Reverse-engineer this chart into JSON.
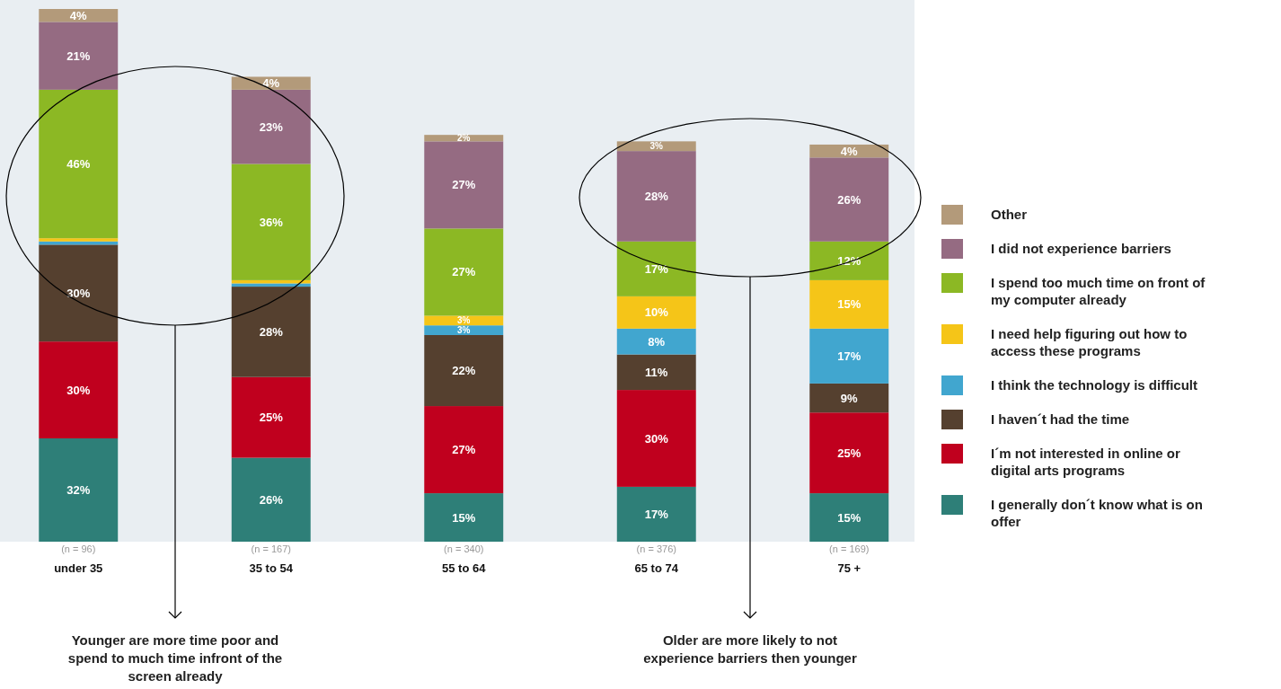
{
  "chart_data": {
    "type": "bar",
    "stacked": true,
    "legend": "right",
    "categories": [
      "under 35",
      "35 to 54",
      "55 to 64",
      "65 to 74",
      "75 +"
    ],
    "series": [
      {
        "name": "I generally don´t know what is on offer",
        "color": "#2e7f78",
        "values": [
          32,
          26,
          15,
          17,
          15
        ],
        "value_labels": [
          "32%",
          "26%",
          "15%",
          "17%",
          "15%"
        ]
      },
      {
        "name": "I´m not interested in online or digital arts programs",
        "color": "#c0001e",
        "values": [
          30,
          25,
          27,
          30,
          25
        ],
        "value_labels": [
          "30%",
          "25%",
          "27%",
          "30%",
          "25%"
        ]
      },
      {
        "name": "I haven´t had the time",
        "color": "#55402f",
        "values": [
          30,
          28,
          22,
          11,
          9
        ],
        "value_labels": [
          "30%",
          "28%",
          "22%",
          "11%",
          "9%"
        ]
      },
      {
        "name": "I think the technology is difficult",
        "color": "#41a6cf",
        "values": [
          1,
          1,
          3,
          8,
          17
        ],
        "value_labels": [
          null,
          null,
          "3%",
          "8%",
          "17%"
        ]
      },
      {
        "name": "I need help figuring out how to access these programs",
        "color": "#f5c518",
        "values": [
          1,
          1,
          3,
          10,
          15
        ],
        "value_labels": [
          null,
          null,
          "3%",
          "10%",
          "15%"
        ]
      },
      {
        "name": "I spend too much time on front of my computer already",
        "color": "#8cb824",
        "values": [
          46,
          36,
          27,
          17,
          12
        ],
        "value_labels": [
          "46%",
          "36%",
          "27%",
          "17%",
          "12%"
        ]
      },
      {
        "name": "I did not experience barriers",
        "color": "#956b82",
        "values": [
          21,
          23,
          27,
          28,
          26
        ],
        "value_labels": [
          "21%",
          "23%",
          "27%",
          "28%",
          "26%"
        ]
      },
      {
        "name": "Other",
        "color": "#b39a7a",
        "values": [
          4,
          4,
          2,
          3,
          4
        ],
        "value_labels": [
          "4%",
          "4%",
          "2%",
          "3%",
          "4%"
        ]
      }
    ],
    "annotations": [
      "(n = 96)",
      "(n = 167)",
      "(n = 340)",
      "(n = 376)",
      "(n = 169)",
      "Younger are more time poor and spend to much time infront of the screen already",
      "Older are more likely to not experience barriers then younger"
    ]
  }
}
